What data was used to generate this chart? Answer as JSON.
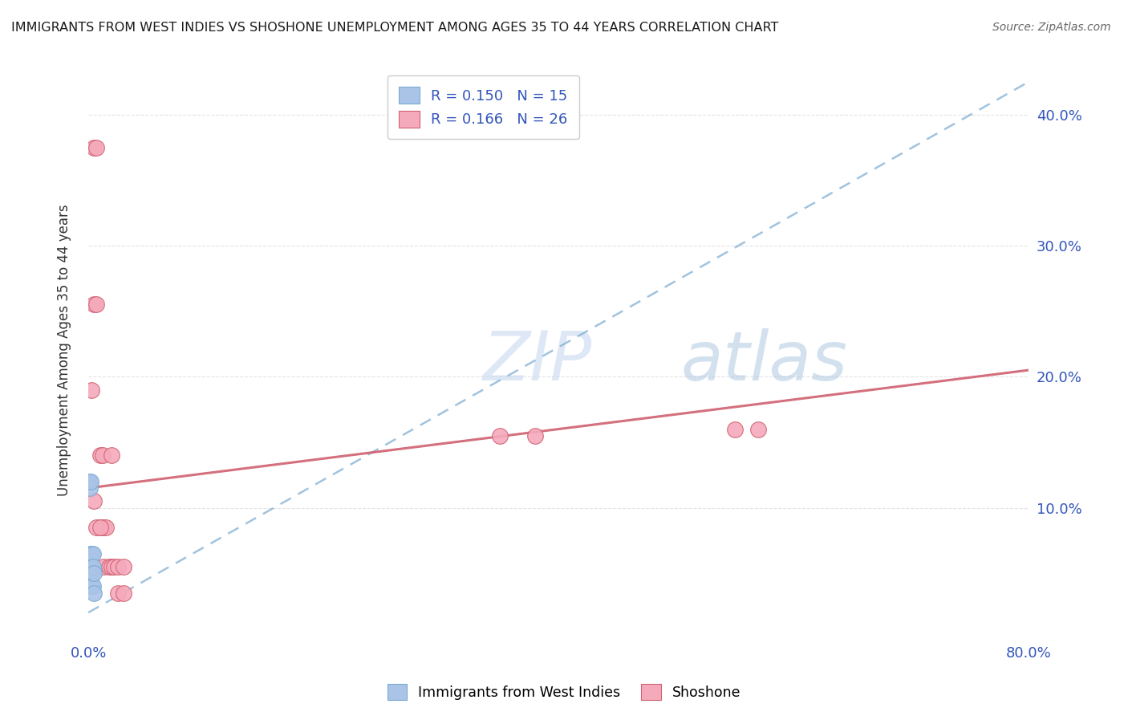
{
  "title": "IMMIGRANTS FROM WEST INDIES VS SHOSHONE UNEMPLOYMENT AMONG AGES 35 TO 44 YEARS CORRELATION CHART",
  "source": "Source: ZipAtlas.com",
  "ylabel": "Unemployment Among Ages 35 to 44 years",
  "xlim": [
    0,
    0.8
  ],
  "ylim": [
    0,
    0.44
  ],
  "background_color": "#ffffff",
  "grid_color": "#e0e0e0",
  "series1_color": "#aac4e8",
  "series2_color": "#f5aabc",
  "trendline1_color": "#7aaad0",
  "trendline2_color": "#d06070",
  "trendline1_x0": 0.0,
  "trendline1_y0": 0.02,
  "trendline1_x1": 0.8,
  "trendline1_y1": 0.425,
  "trendline2_x0": 0.0,
  "trendline2_y0": 0.115,
  "trendline2_x1": 0.8,
  "trendline2_y1": 0.205,
  "west_indies_x": [
    0.001,
    0.001,
    0.002,
    0.002,
    0.002,
    0.002,
    0.003,
    0.003,
    0.003,
    0.003,
    0.004,
    0.004,
    0.004,
    0.005,
    0.005
  ],
  "west_indies_y": [
    0.12,
    0.115,
    0.12,
    0.065,
    0.055,
    0.04,
    0.065,
    0.055,
    0.05,
    0.04,
    0.065,
    0.055,
    0.04,
    0.05,
    0.035
  ],
  "shoshone_x": [
    0.003,
    0.005,
    0.007,
    0.005,
    0.007,
    0.01,
    0.012,
    0.01,
    0.013,
    0.013,
    0.015,
    0.018,
    0.02,
    0.02,
    0.022,
    0.025,
    0.025,
    0.03,
    0.03,
    0.35,
    0.38,
    0.55,
    0.57,
    0.005,
    0.007,
    0.01
  ],
  "shoshone_y": [
    0.19,
    0.375,
    0.375,
    0.255,
    0.255,
    0.14,
    0.14,
    0.085,
    0.085,
    0.055,
    0.085,
    0.055,
    0.14,
    0.055,
    0.055,
    0.055,
    0.035,
    0.055,
    0.035,
    0.155,
    0.155,
    0.16,
    0.16,
    0.105,
    0.085,
    0.085
  ],
  "legend_label1": "R = 0.150   N = 15",
  "legend_label2": "R = 0.166   N = 26",
  "bottom_label1": "Immigrants from West Indies",
  "bottom_label2": "Shoshone",
  "watermark": "ZIPatlas",
  "watermark_zip_color": "#c8d4ec",
  "watermark_atlas_color": "#a8c0e0"
}
